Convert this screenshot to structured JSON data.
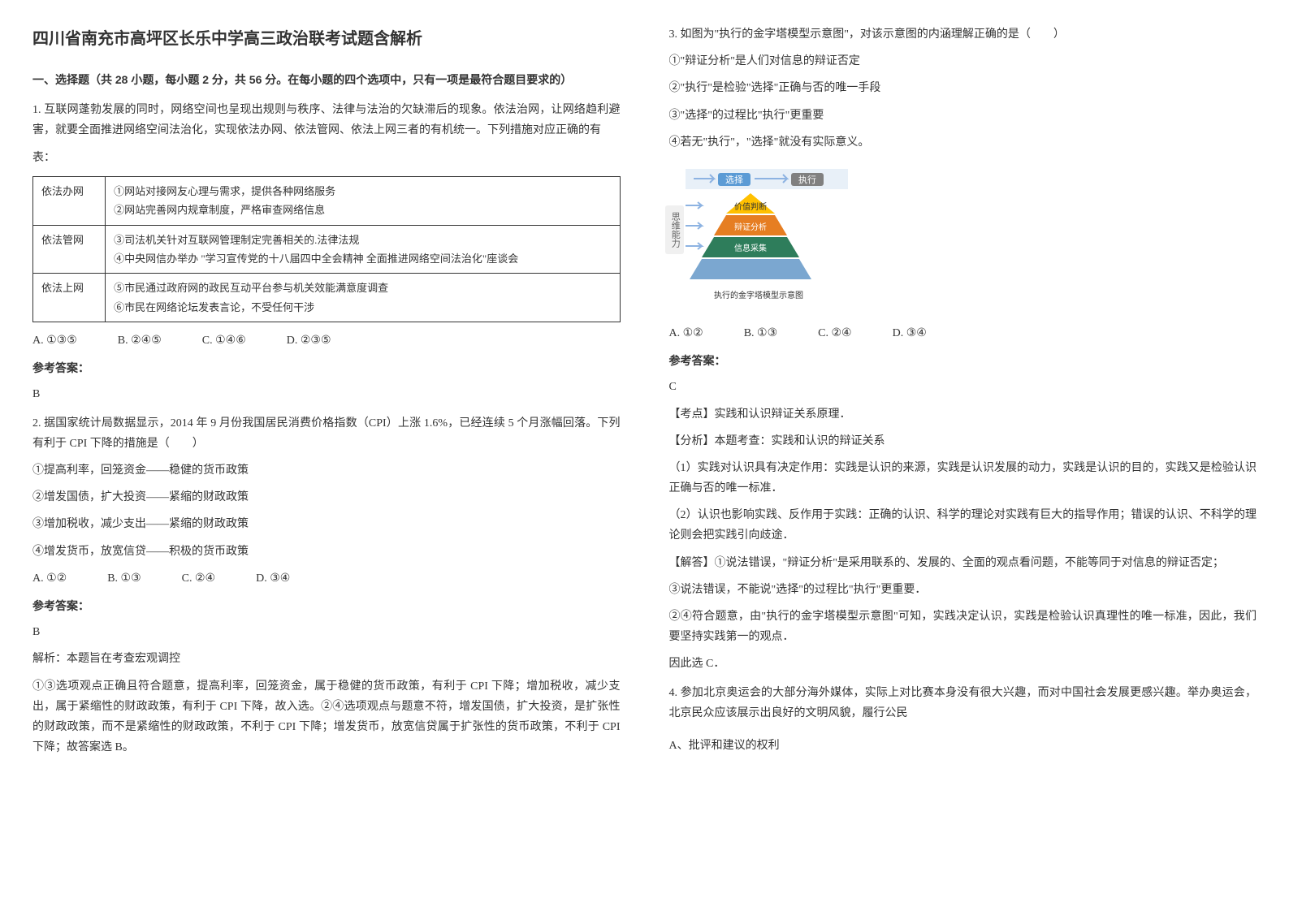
{
  "title": "四川省南充市高坪区长乐中学高三政治联考试题含解析",
  "section_header": "一、选择题（共 28 小题，每小题 2 分，共 56 分。在每小题的四个选项中，只有一项是最符合题目要求的）",
  "q1": {
    "text": "1. 互联网蓬勃发展的同时，网络空间也呈现出规则与秩序、法律与法治的欠缺滞后的现象。依法治网，让网络趋利避害，就要全面推进网络空间法治化，实现依法办网、依法管网、依法上网三者的有机统一。下列措施对应正确的有",
    "table_label": "表：",
    "table": {
      "rows": [
        [
          "依法办网",
          "①网站对接网友心理与需求，提供各种网络服务\n②网站完善网内规章制度，严格审查网络信息"
        ],
        [
          "依法管网",
          "③司法机关针对互联网管理制定完善相关的.法律法规\n④中央网信办举办 \"学习宣传党的十八届四中全会精神  全面推进网络空间法治化\"座谈会"
        ],
        [
          "依法上网",
          "⑤市民通过政府网的政民互动平台参与机关效能满意度调查\n⑥市民在网络论坛发表言论，不受任何干涉"
        ]
      ]
    },
    "options": [
      "A. ①③⑤",
      "B. ②④⑤",
      "C. ①④⑥",
      "D. ②③⑤"
    ],
    "answer_label": "参考答案：",
    "answer": "B"
  },
  "q2": {
    "text": "2. 据国家统计局数据显示，2014 年 9 月份我国居民消费价格指数（CPI）上涨 1.6%，已经连续 5 个月涨幅回落。下列有利于 CPI 下降的措施是（　　）",
    "items": [
      "①提高利率，回笼资金——稳健的货币政策",
      "②增发国债，扩大投资——紧缩的财政政策",
      "③增加税收，减少支出——紧缩的财政政策",
      "④增发货币，放宽信贷——积极的货币政策"
    ],
    "options": [
      "A. ①②",
      "B. ①③",
      "C. ②④",
      "D. ③④"
    ],
    "answer_label": "参考答案：",
    "answer": "B",
    "analysis": "解析：本题旨在考查宏观调控\n①③选项观点正确且符合题意，提高利率，回笼资金，属于稳健的货币政策，有利于 CPI 下降；增加税收，减少支出，属于紧缩性的财政政策，有利于 CPI 下降，故入选。②④选项观点与题意不符，增发国债，扩大投资，是扩张性的财政政策，而不是紧缩性的财政政策，不利于 CPI 下降；增发货币，放宽信贷属于扩张性的货币政策，不利于 CPI 下降；故答案选 B。"
  },
  "q3": {
    "text": "3. 如图为\"执行的金字塔模型示意图\"，对该示意图的内涵理解正确的是（　　）",
    "items": [
      "①\"辩证分析\"是人们对信息的辩证否定",
      "②\"执行\"是检验\"选择\"正确与否的唯一手段",
      "③\"选择\"的过程比\"执行\"更重要",
      "④若无\"执行\"，\"选择\"就没有实际意义。"
    ],
    "pyramid": {
      "top_labels": [
        "选择",
        "执行"
      ],
      "levels": [
        "价值判断",
        "辩证分析",
        "信息采集"
      ],
      "caption": "执行的金字塔模型示意图",
      "side_label": "思维能力",
      "colors": {
        "top_bg": "#5b9bd5",
        "level1": "#ffc000",
        "level2": "#e67e22",
        "level3": "#2e7d5b",
        "level4": "#7ba7d0",
        "caption_bg": "#2c5aa0",
        "arrow": "#8db3e2"
      }
    },
    "options": [
      "A. ①②",
      "B. ①③",
      "C. ②④",
      "D. ③④"
    ],
    "answer_label": "参考答案：",
    "answer": "C",
    "analysis_parts": [
      "【考点】实践和认识辩证关系原理．",
      "【分析】本题考查：实践和认识的辩证关系",
      "（1）实践对认识具有决定作用：实践是认识的来源，实践是认识发展的动力，实践是认识的目的，实践又是检验认识正确与否的唯一标准．",
      "（2）认识也影响实践、反作用于实践：正确的认识、科学的理论对实践有巨大的指导作用；错误的认识、不科学的理论则会把实践引向歧途．",
      "【解答】①说法错误，\"辩证分析\"是采用联系的、发展的、全面的观点看问题，不能等同于对信息的辩证否定；",
      "③说法错误，不能说\"选择\"的过程比\"执行\"更重要．",
      "②④符合题意，由\"执行的金字塔模型示意图\"可知，实践决定认识，实践是检验认识真理性的唯一标准，因此，我们要坚持实践第一的观点．",
      "因此选 C．"
    ]
  },
  "q4": {
    "text": "4. 参加北京奥运会的大部分海外媒体，实际上对比赛本身没有很大兴趣，而对中国社会发展更感兴趣。举办奥运会，北京民众应该展示出良好的文明风貌，履行公民",
    "option_a": "A、批评和建议的权利"
  }
}
